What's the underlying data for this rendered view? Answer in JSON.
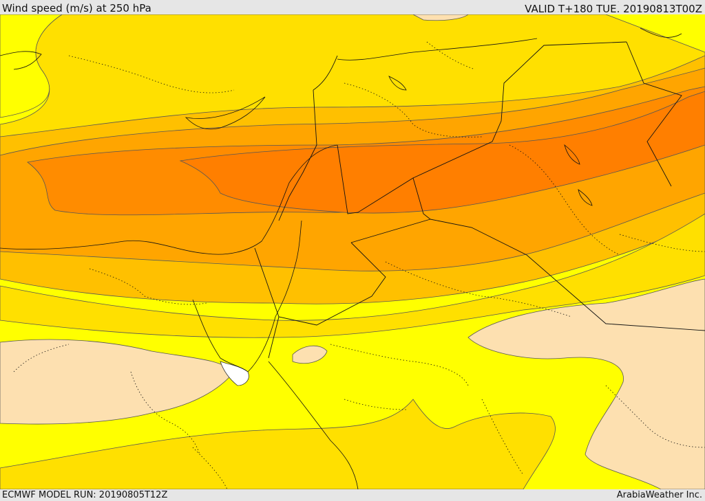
{
  "header": {
    "title": "Wind speed (m/s) at 250 hPa",
    "valid": "VALID T+180 TUE. 20190813T00Z"
  },
  "footer": {
    "model_run": "ECMWF MODEL RUN: 20190805T12Z",
    "credit": "ArabiaWeather Inc."
  },
  "map": {
    "field": "wind speed at 250 hPa",
    "colors": {
      "lightest": "#fde0b0",
      "yellow": "#ffff00",
      "gold": "#ffe000",
      "amber": "#ffc000",
      "orange": "#ffa500",
      "dark_orange": "#ff8000",
      "lake": "#ffffff"
    }
  }
}
